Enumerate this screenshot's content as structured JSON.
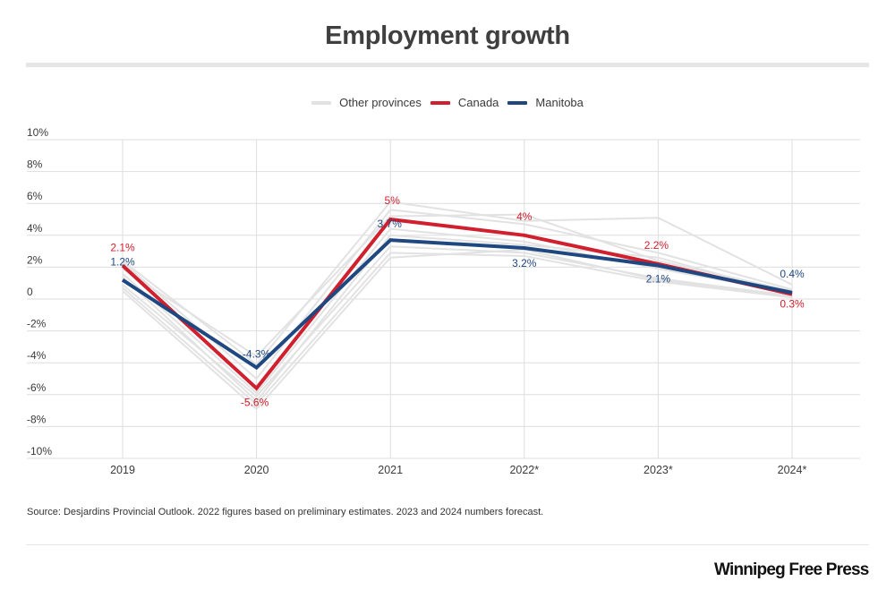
{
  "header": {
    "title": "Employment growth"
  },
  "legend": [
    {
      "label": "Other provinces",
      "color": "#e2e2e2"
    },
    {
      "label": "Canada",
      "color": "#d0202e"
    },
    {
      "label": "Manitoba",
      "color": "#1f4780"
    }
  ],
  "footer": {
    "source": "Source: Desjardins Provincial Outlook. 2022 figures based on preliminary estimates. 2023 and 2024 numbers forecast.",
    "brand": "Winnipeg Free Press"
  },
  "chart_data": {
    "type": "line",
    "title": "Employment growth",
    "xlabel": "",
    "ylabel": "",
    "categories": [
      "2019",
      "2020",
      "2021",
      "2022*",
      "2023*",
      "2024*"
    ],
    "ylim": [
      -10,
      10
    ],
    "yticks": [
      10,
      8,
      6,
      4,
      2,
      0,
      -2,
      -4,
      -6,
      -8,
      -10
    ],
    "ytick_labels": [
      "10%",
      "8%",
      "6%",
      "4%",
      "2%",
      "0",
      "-2%",
      "-4%",
      "-6%",
      "-8%",
      "-10%"
    ],
    "grid": true,
    "legend_position": "top-center",
    "series": [
      {
        "name": "Other provinces",
        "color": "#e2e2e2",
        "group": "other",
        "values": [
          2.4,
          -4.1,
          6.1,
          4.9,
          5.1,
          0.9
        ]
      },
      {
        "name": "Other provinces",
        "color": "#e2e2e2",
        "group": "other",
        "values": [
          2.3,
          -5.0,
          5.6,
          4.7,
          2.9,
          0.6
        ]
      },
      {
        "name": "Other provinces",
        "color": "#e2e2e2",
        "group": "other",
        "values": [
          1.9,
          -3.6,
          5.2,
          5.3,
          2.4,
          0.5
        ]
      },
      {
        "name": "Other provinces",
        "color": "#e2e2e2",
        "group": "other",
        "values": [
          1.6,
          -5.9,
          4.4,
          3.6,
          1.9,
          0.4
        ]
      },
      {
        "name": "Other provinces",
        "color": "#e2e2e2",
        "group": "other",
        "values": [
          1.4,
          -6.4,
          4.0,
          3.4,
          2.6,
          0.3
        ]
      },
      {
        "name": "Other provinces",
        "color": "#e2e2e2",
        "group": "other",
        "values": [
          0.9,
          -6.1,
          3.3,
          2.9,
          1.3,
          0.2
        ]
      },
      {
        "name": "Other provinces",
        "color": "#e2e2e2",
        "group": "other",
        "values": [
          0.5,
          -6.9,
          2.6,
          3.1,
          1.2,
          0.2
        ]
      },
      {
        "name": "Other provinces",
        "color": "#e2e2e2",
        "group": "other",
        "values": [
          0.7,
          -6.6,
          2.9,
          2.7,
          1.1,
          0.1
        ]
      },
      {
        "name": "Canada",
        "color": "#d0202e",
        "group": "canada",
        "values": [
          2.1,
          -5.6,
          5.0,
          4.0,
          2.2,
          0.3
        ],
        "labels": [
          "2.1%",
          "-5.6%",
          "5%",
          "4%",
          "2.2%",
          "0.3%"
        ]
      },
      {
        "name": "Manitoba",
        "color": "#1f4780",
        "group": "manitoba",
        "values": [
          1.2,
          -4.3,
          3.7,
          3.2,
          2.1,
          0.4
        ],
        "labels": [
          "1.2%",
          "-4.3%",
          "3.7%",
          "3.2%",
          "2.1%",
          "0.4%"
        ]
      }
    ]
  }
}
